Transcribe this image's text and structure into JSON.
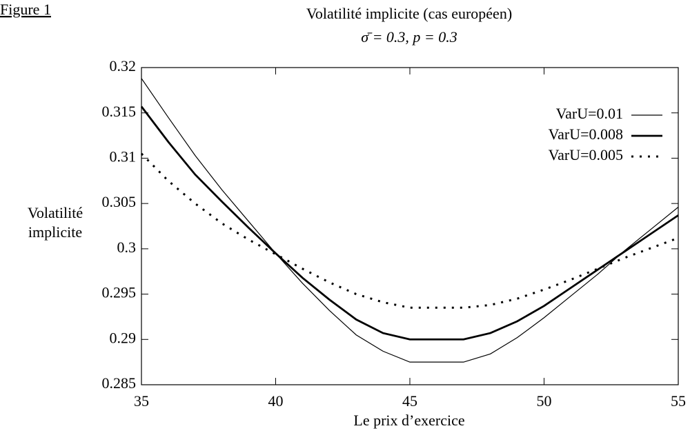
{
  "chart_data": {
    "type": "line",
    "annotation": "Figure 1",
    "title": "Volatilité implicite (cas européen)",
    "subtitle": "σ̄ = 0.3, p = 0.3",
    "x_label": "Le prix d’exercice",
    "y_label": [
      "Volatilité",
      "implicite"
    ],
    "x": [
      35,
      36,
      37,
      38,
      39,
      40,
      41,
      42,
      43,
      44,
      45,
      46,
      47,
      48,
      49,
      50,
      51,
      52,
      53,
      54,
      55
    ],
    "series": [
      {
        "name": "VarU=0.01",
        "color": "#000000",
        "line_width": 1.2,
        "style": "solid",
        "values": [
          0.3188,
          0.3145,
          0.3103,
          0.3065,
          0.303,
          0.2995,
          0.2962,
          0.2932,
          0.2905,
          0.2887,
          0.2875,
          0.2875,
          0.2875,
          0.2884,
          0.2902,
          0.2924,
          0.2948,
          0.2972,
          0.2998,
          0.3022,
          0.3046
        ]
      },
      {
        "name": "VarU=0.008",
        "color": "#000000",
        "line_width": 2.8,
        "style": "solid",
        "values": [
          0.3157,
          0.3118,
          0.3082,
          0.3052,
          0.3023,
          0.2995,
          0.2968,
          0.2944,
          0.2922,
          0.2907,
          0.29,
          0.29,
          0.29,
          0.2907,
          0.292,
          0.2937,
          0.2957,
          0.2977,
          0.2997,
          0.3017,
          0.3037
        ]
      },
      {
        "name": "VarU=0.005",
        "color": "#000000",
        "line_width": 3,
        "style": "dotted",
        "values": [
          0.3105,
          0.3075,
          0.305,
          0.3028,
          0.301,
          0.2994,
          0.2978,
          0.2963,
          0.295,
          0.2941,
          0.2935,
          0.2935,
          0.2935,
          0.2938,
          0.2945,
          0.2955,
          0.2966,
          0.2978,
          0.299,
          0.3001,
          0.3012
        ]
      }
    ],
    "xlim": [
      35,
      55
    ],
    "xticks": [
      35,
      40,
      45,
      50,
      55
    ],
    "ylim": [
      0.285,
      0.32
    ],
    "yticks": [
      0.285,
      0.29,
      0.295,
      0.3,
      0.305,
      0.31,
      0.315,
      0.32
    ],
    "grid": false,
    "legend": "top-right"
  }
}
